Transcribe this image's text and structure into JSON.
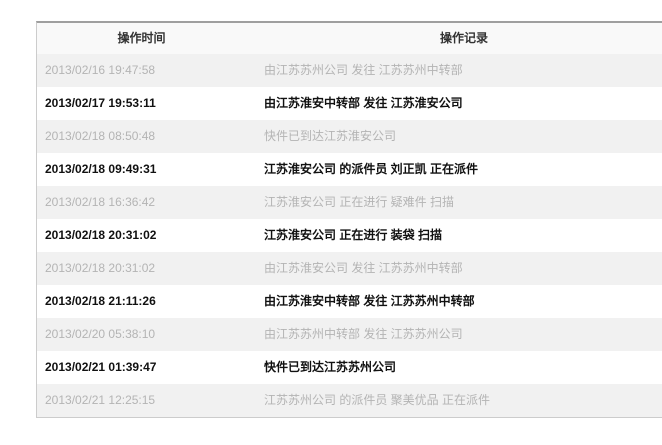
{
  "table": {
    "columns": [
      {
        "label": "操作时间"
      },
      {
        "label": "操作记录"
      }
    ],
    "rows": [
      {
        "time": "2013/02/16 19:47:58",
        "record": "由江苏苏州公司 发往 江苏苏州中转部"
      },
      {
        "time": "2013/02/17 19:53:11",
        "record": "由江苏淮安中转部 发往 江苏淮安公司"
      },
      {
        "time": "2013/02/18 08:50:48",
        "record": "快件已到达江苏淮安公司"
      },
      {
        "time": "2013/02/18 09:49:31",
        "record": "江苏淮安公司 的派件员 刘正凯 正在派件"
      },
      {
        "time": "2013/02/18 16:36:42",
        "record": "江苏淮安公司 正在进行 疑难件 扫描"
      },
      {
        "time": "2013/02/18 20:31:02",
        "record": "江苏淮安公司 正在进行 装袋 扫描"
      },
      {
        "time": "2013/02/18 20:31:02",
        "record": "由江苏淮安公司 发往 江苏苏州中转部"
      },
      {
        "time": "2013/02/18 21:11:26",
        "record": "由江苏淮安中转部 发往 江苏苏州中转部"
      },
      {
        "time": "2013/02/20 05:38:10",
        "record": "由江苏苏州中转部 发往 江苏苏州公司"
      },
      {
        "time": "2013/02/21 01:39:47",
        "record": "快件已到达江苏苏州公司"
      },
      {
        "time": "2013/02/21 12:25:15",
        "record": "江苏苏州公司 的派件员 聚美优品 正在派件"
      }
    ],
    "colors": {
      "header_bg": "#f9f9f9",
      "row_alt_bg": "#f1f1f1",
      "row_bg": "#ffffff",
      "muted_text": "#b4b4b4",
      "strong_text": "#111111",
      "border_top": "#9f9f9f",
      "border": "#cccccc"
    }
  }
}
